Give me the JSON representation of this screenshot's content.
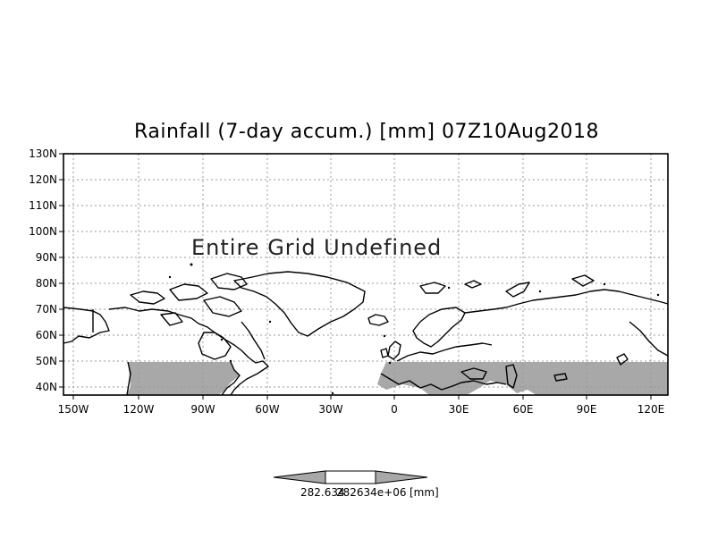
{
  "title": "Rainfall (7-day accum.) [mm] 07Z10Aug2018",
  "map_message": "Entire Grid Undefined",
  "y_ticks": [
    "130N",
    "120N",
    "110N",
    "100N",
    "90N",
    "80N",
    "70N",
    "60N",
    "50N",
    "40N"
  ],
  "x_ticks": [
    "150W",
    "120W",
    "90W",
    "60W",
    "30W",
    "0",
    "30E",
    "60E",
    "90E",
    "120E"
  ],
  "colorbar": {
    "left_value": "282.634",
    "right_value": "282634e+06",
    "unit": "[mm]"
  },
  "colors": {
    "land_mask": "#a8a8a8",
    "coast": "#000000",
    "grid": "#999999"
  }
}
